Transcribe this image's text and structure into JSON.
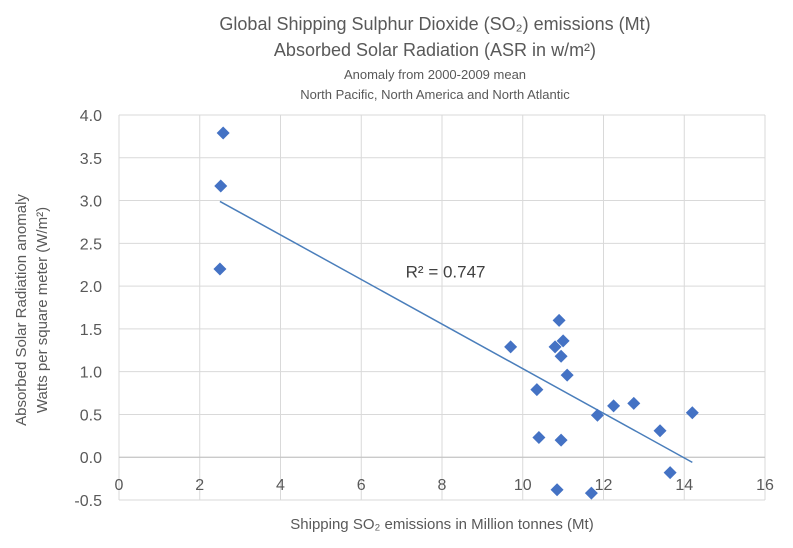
{
  "chart_data": {
    "type": "scatter",
    "title": "Global Shipping Sulphur Dioxide (SO₂) emissions (Mt)",
    "title_line2": "Absorbed Solar Radiation (ASR in w/m²)",
    "subtitle": "Anomaly from 2000-2009 mean",
    "subtitle_line2": "North Pacific, North America and North Atlantic",
    "xlabel": "Shipping SO₂ emissions in Million tonnes (Mt)",
    "ylabel": "Absorbed Solar Radiation anomaly",
    "ylabel_line2": "Watts per square meter (W/m²)",
    "xlim": [
      0,
      16
    ],
    "ylim": [
      -0.5,
      4.0
    ],
    "x_ticks": [
      "0",
      "2",
      "4",
      "6",
      "8",
      "10",
      "12",
      "14",
      "16"
    ],
    "y_ticks": [
      "-0.5",
      "0.0",
      "0.5",
      "1.0",
      "1.5",
      "2.0",
      "2.5",
      "3.0",
      "3.5",
      "4.0"
    ],
    "grid": true,
    "legend": "none",
    "marker_color": "#4472c4",
    "trendline_color": "#4a7ebb",
    "points": [
      {
        "x": 2.58,
        "y": 3.79
      },
      {
        "x": 2.52,
        "y": 3.17
      },
      {
        "x": 2.5,
        "y": 2.2
      },
      {
        "x": 9.7,
        "y": 1.29
      },
      {
        "x": 10.35,
        "y": 0.79
      },
      {
        "x": 10.4,
        "y": 0.23
      },
      {
        "x": 10.8,
        "y": 1.29
      },
      {
        "x": 10.9,
        "y": 1.6
      },
      {
        "x": 10.95,
        "y": 1.18
      },
      {
        "x": 11.0,
        "y": 1.36
      },
      {
        "x": 11.1,
        "y": 0.96
      },
      {
        "x": 10.95,
        "y": 0.2
      },
      {
        "x": 10.85,
        "y": -0.38
      },
      {
        "x": 11.7,
        "y": -0.42
      },
      {
        "x": 11.85,
        "y": 0.49
      },
      {
        "x": 12.25,
        "y": 0.6
      },
      {
        "x": 12.75,
        "y": 0.63
      },
      {
        "x": 13.4,
        "y": 0.31
      },
      {
        "x": 13.65,
        "y": -0.18
      },
      {
        "x": 14.2,
        "y": 0.52
      }
    ],
    "trendline": {
      "x": [
        2.5,
        14.2
      ],
      "y": [
        2.99,
        -0.06
      ],
      "r2_label": "R² = 0.747"
    }
  }
}
